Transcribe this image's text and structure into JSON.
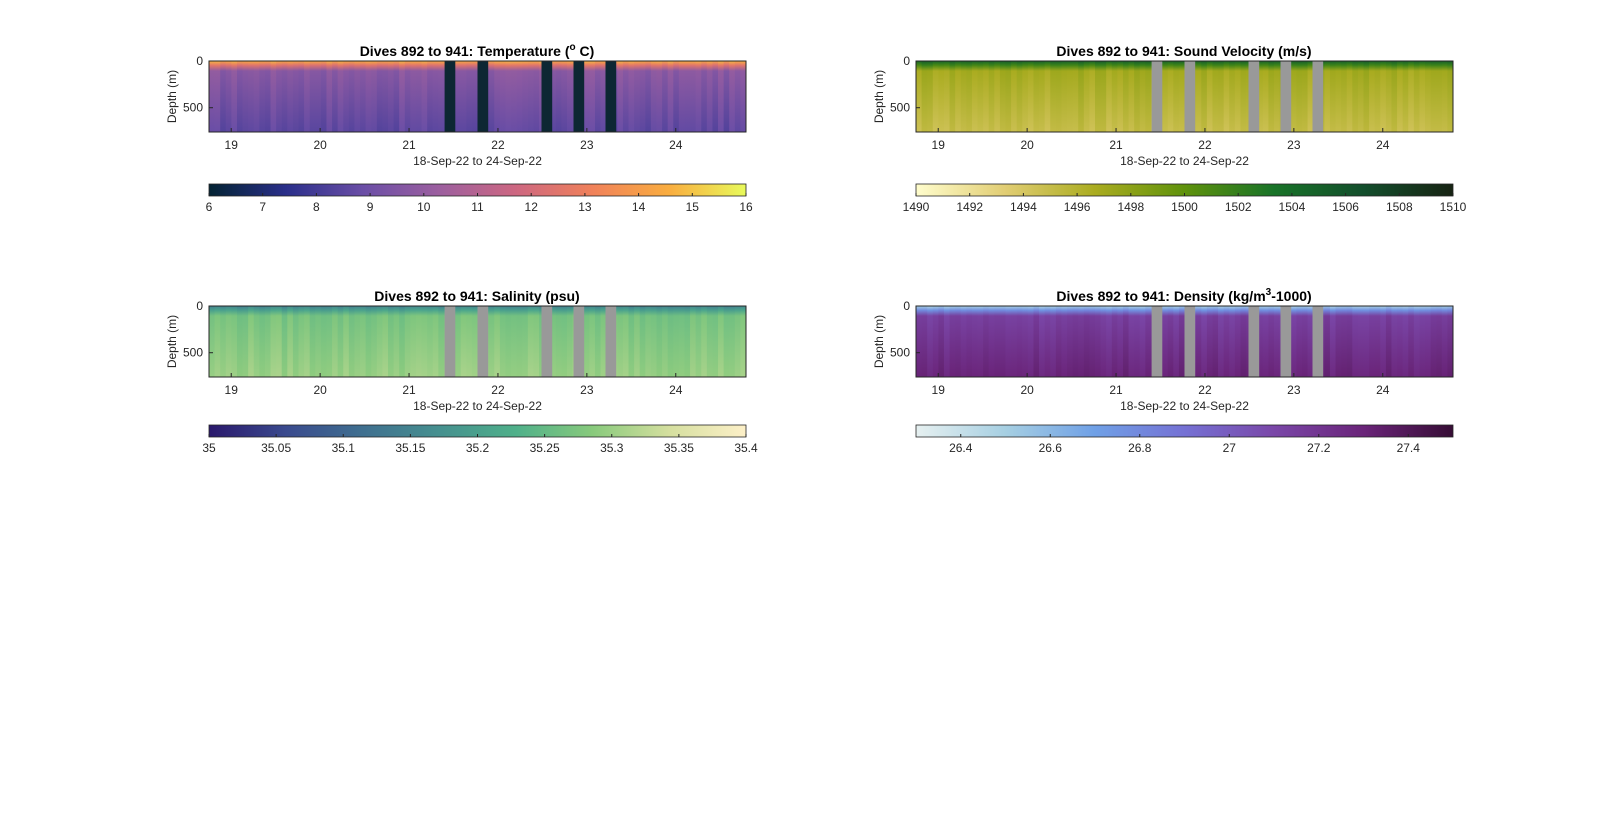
{
  "figure_title": "",
  "colors": {
    "gap_temperature": "#0d2733",
    "gap_other": "#999999",
    "axis": "#262626"
  },
  "chart_data": [
    {
      "type": "heatmap",
      "id": "temperature",
      "title_main": "Dives 892 to 941: Temperature (",
      "title_sup": "o",
      "title_tail": " C)",
      "xlabel": "18-Sep-22 to 24-Sep-22",
      "ylabel": "Depth (m)",
      "x_range": [
        "2022-09-18T18:00",
        "2022-09-24T19:00"
      ],
      "x_ticks": [
        19,
        20,
        21,
        22,
        23,
        24
      ],
      "y_range": [
        0,
        760
      ],
      "y_ticks": [
        0,
        500
      ],
      "gap_color": "#0d2733",
      "data_gaps": [
        [
          21.4,
          21.52
        ],
        [
          21.77,
          21.89
        ],
        [
          22.49,
          22.61
        ],
        [
          22.85,
          22.97
        ],
        [
          23.21,
          23.33
        ]
      ],
      "surface_value": 14.5,
      "deep_value": 8.6,
      "colorbar": {
        "colormap": "thermal",
        "range": [
          6,
          16
        ],
        "ticks": [
          "6",
          "7",
          "8",
          "9",
          "10",
          "11",
          "12",
          "13",
          "14",
          "15",
          "16"
        ],
        "stops": [
          "#032333",
          "#2a2f8a",
          "#6a4ea6",
          "#9c5f9f",
          "#cd6781",
          "#f0815a",
          "#f9ad3f",
          "#e8fa5b"
        ]
      }
    },
    {
      "type": "heatmap",
      "id": "sound_velocity",
      "title_main": "Dives 892 to 941: Sound Velocity (m/s)",
      "title_sup": "",
      "title_tail": "",
      "xlabel": "18-Sep-22 to 24-Sep-22",
      "ylabel": "Depth (m)",
      "x_range": [
        "2022-09-18T18:00",
        "2022-09-24T19:00"
      ],
      "x_ticks": [
        19,
        20,
        21,
        22,
        23,
        24
      ],
      "y_range": [
        0,
        760
      ],
      "y_ticks": [
        0,
        500
      ],
      "gap_color": "#999999",
      "data_gaps": [
        [
          21.4,
          21.52
        ],
        [
          21.77,
          21.89
        ],
        [
          22.49,
          22.61
        ],
        [
          22.85,
          22.97
        ],
        [
          23.21,
          23.33
        ]
      ],
      "surface_value": 1505,
      "deep_value": 1495,
      "colorbar": {
        "colormap": "speed",
        "range": [
          1490,
          1510
        ],
        "ticks": [
          "1490",
          "1492",
          "1494",
          "1496",
          "1498",
          "1500",
          "1502",
          "1504",
          "1506",
          "1508",
          "1510"
        ],
        "stops": [
          "#fffdcd",
          "#e1cd73",
          "#aaac20",
          "#5f920c",
          "#187328",
          "#134e2c",
          "#172313"
        ]
      }
    },
    {
      "type": "heatmap",
      "id": "salinity",
      "title_main": "Dives 892 to 941: Salinity (psu)",
      "title_sup": "",
      "title_tail": "",
      "xlabel": "18-Sep-22 to 24-Sep-22",
      "ylabel": "Depth (m)",
      "x_range": [
        "2022-09-18T18:00",
        "2022-09-24T19:00"
      ],
      "x_ticks": [
        19,
        20,
        21,
        22,
        23,
        24
      ],
      "y_range": [
        0,
        760
      ],
      "y_ticks": [
        0,
        500
      ],
      "gap_color": "#999999",
      "data_gaps": [
        [
          21.4,
          21.52
        ],
        [
          21.77,
          21.89
        ],
        [
          22.49,
          22.61
        ],
        [
          22.85,
          22.97
        ],
        [
          23.21,
          23.33
        ]
      ],
      "surface_value": 35.15,
      "deep_value": 35.3,
      "colorbar": {
        "colormap": "haline",
        "range": [
          35,
          35.4
        ],
        "ticks": [
          "35",
          "35.05",
          "35.1",
          "35.15",
          "35.2",
          "35.25",
          "35.3",
          "35.35",
          "35.4"
        ],
        "stops": [
          "#2a186c",
          "#3a4a8e",
          "#3f6f8f",
          "#46908f",
          "#4fb08a",
          "#88ca7c",
          "#d5df9f",
          "#fdf0c8"
        ]
      }
    },
    {
      "type": "heatmap",
      "id": "density",
      "title_main": "Dives 892 to 941: Density (kg/m",
      "title_sup": "3",
      "title_tail": "-1000)",
      "xlabel": "18-Sep-22 to 24-Sep-22",
      "ylabel": "Depth (m)",
      "x_range": [
        "2022-09-18T18:00",
        "2022-09-24T19:00"
      ],
      "x_ticks": [
        19,
        20,
        21,
        22,
        23,
        24
      ],
      "y_range": [
        0,
        760
      ],
      "y_ticks": [
        0,
        500
      ],
      "gap_color": "#999999",
      "data_gaps": [
        [
          21.4,
          21.52
        ],
        [
          21.77,
          21.89
        ],
        [
          22.49,
          22.61
        ],
        [
          22.85,
          22.97
        ],
        [
          23.21,
          23.33
        ]
      ],
      "surface_value": 26.5,
      "deep_value": 27.3,
      "colorbar": {
        "colormap": "dense",
        "range": [
          26.3,
          27.5
        ],
        "ticks": [
          "26.4",
          "26.6",
          "26.8",
          "27",
          "27.2",
          "27.4"
        ],
        "stops": [
          "#e6f0f0",
          "#a6cfe2",
          "#6fa0e6",
          "#7571d4",
          "#7a47a8",
          "#6a2479",
          "#360d35"
        ]
      }
    }
  ]
}
